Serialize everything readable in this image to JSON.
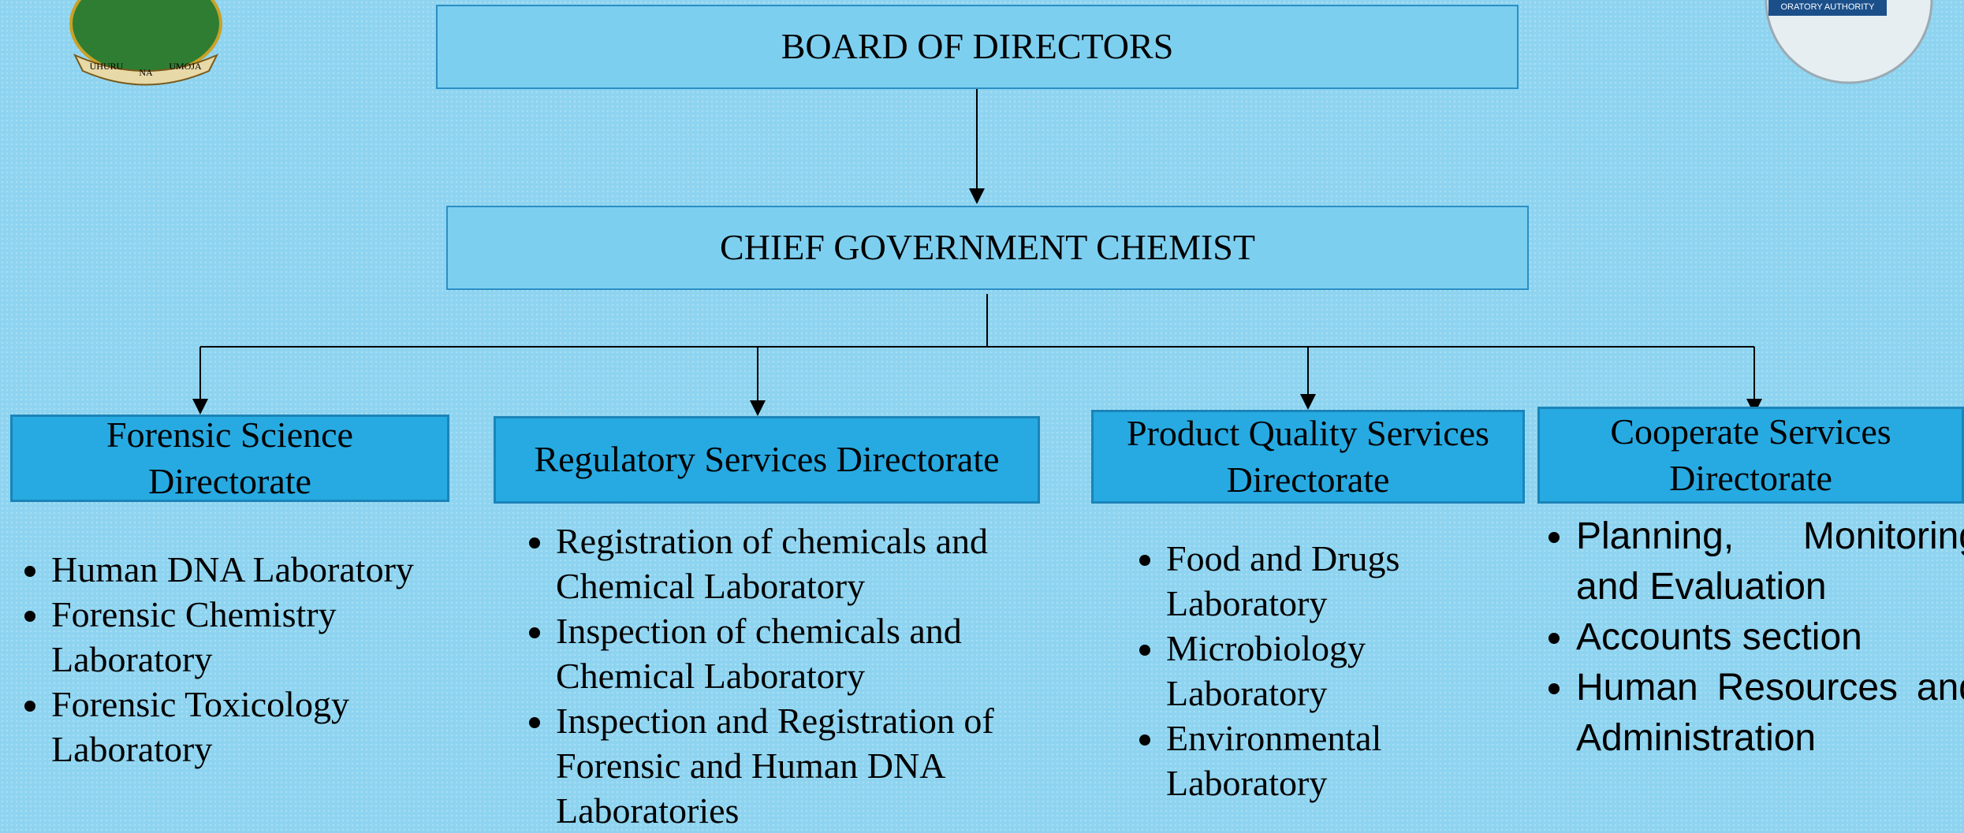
{
  "nodes": {
    "board": {
      "label": "BOARD OF DIRECTORS"
    },
    "chief": {
      "label": "CHIEF GOVERNMENT CHEMIST"
    },
    "directorates": [
      {
        "label": "Forensic Science Directorate",
        "items": [
          "Human DNA Laboratory",
          "Forensic Chemistry Laboratory",
          "Forensic Toxicology Laboratory"
        ]
      },
      {
        "label": "Regulatory Services Directorate",
        "items": [
          "Registration of chemicals and Chemical Laboratory",
          "Inspection of chemicals and Chemical Laboratory",
          "Inspection and Registration of Forensic and Human DNA Laboratories"
        ]
      },
      {
        "label": "Product Quality Services Directorate",
        "items": [
          "Food and Drugs Laboratory",
          "Microbiology Laboratory",
          "Environmental Laboratory"
        ]
      },
      {
        "label": "Cooperate Services Directorate",
        "items": [
          "Planning, Monitoring and Evaluation",
          "Accounts section",
          "Human Resources and Administration"
        ]
      }
    ]
  },
  "logos": {
    "left": [
      "UHURU",
      "NA",
      "UMOJA"
    ],
    "right": "ORATORY AUTHORITY"
  }
}
